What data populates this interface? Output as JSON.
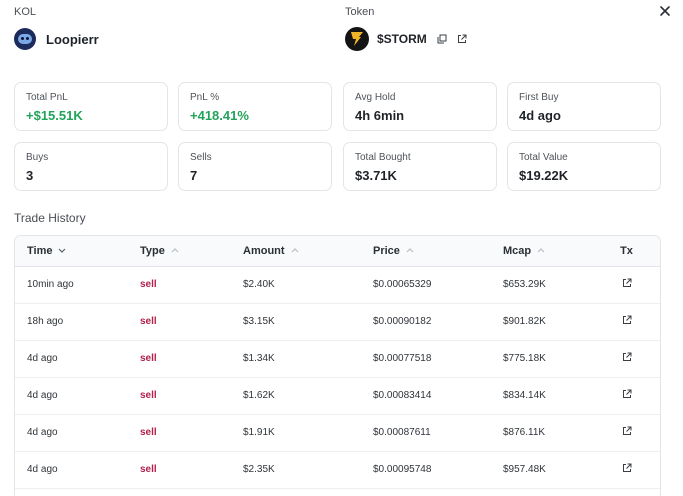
{
  "header": {
    "kol_label": "KOL",
    "kol_name": "Loopierr",
    "token_label": "Token",
    "token_name": "$STORM"
  },
  "stats": [
    {
      "label": "Total PnL",
      "value": "+$15.51K",
      "positive": true
    },
    {
      "label": "PnL %",
      "value": "+418.41%",
      "positive": true
    },
    {
      "label": "Avg Hold",
      "value": "4h 6min",
      "positive": false
    },
    {
      "label": "First Buy",
      "value": "4d ago",
      "positive": false
    },
    {
      "label": "Buys",
      "value": "3",
      "positive": false
    },
    {
      "label": "Sells",
      "value": "7",
      "positive": false
    },
    {
      "label": "Total Bought",
      "value": "$3.71K",
      "positive": false
    },
    {
      "label": "Total Value",
      "value": "$19.22K",
      "positive": false
    }
  ],
  "trade_history": {
    "title": "Trade History",
    "columns": {
      "time": "Time",
      "type": "Type",
      "amount": "Amount",
      "price": "Price",
      "mcap": "Mcap",
      "tx": "Tx"
    },
    "rows": [
      {
        "time": "10min ago",
        "type": "sell",
        "amount": "$2.40K",
        "price": "$0.00065329",
        "mcap": "$653.29K"
      },
      {
        "time": "18h ago",
        "type": "sell",
        "amount": "$3.15K",
        "price": "$0.00090182",
        "mcap": "$901.82K"
      },
      {
        "time": "4d ago",
        "type": "sell",
        "amount": "$1.34K",
        "price": "$0.00077518",
        "mcap": "$775.18K"
      },
      {
        "time": "4d ago",
        "type": "sell",
        "amount": "$1.62K",
        "price": "$0.00083414",
        "mcap": "$834.14K"
      },
      {
        "time": "4d ago",
        "type": "sell",
        "amount": "$1.91K",
        "price": "$0.00087611",
        "mcap": "$876.11K"
      },
      {
        "time": "4d ago",
        "type": "sell",
        "amount": "$2.35K",
        "price": "$0.00095748",
        "mcap": "$957.48K"
      }
    ]
  },
  "colors": {
    "positive": "#22a35a",
    "sell": "#b3204a",
    "border": "#e3e5e8"
  },
  "icons": {
    "close": "close-icon",
    "copy": "copy-icon",
    "external": "external-link-icon",
    "sort": "chevron-down-icon"
  }
}
